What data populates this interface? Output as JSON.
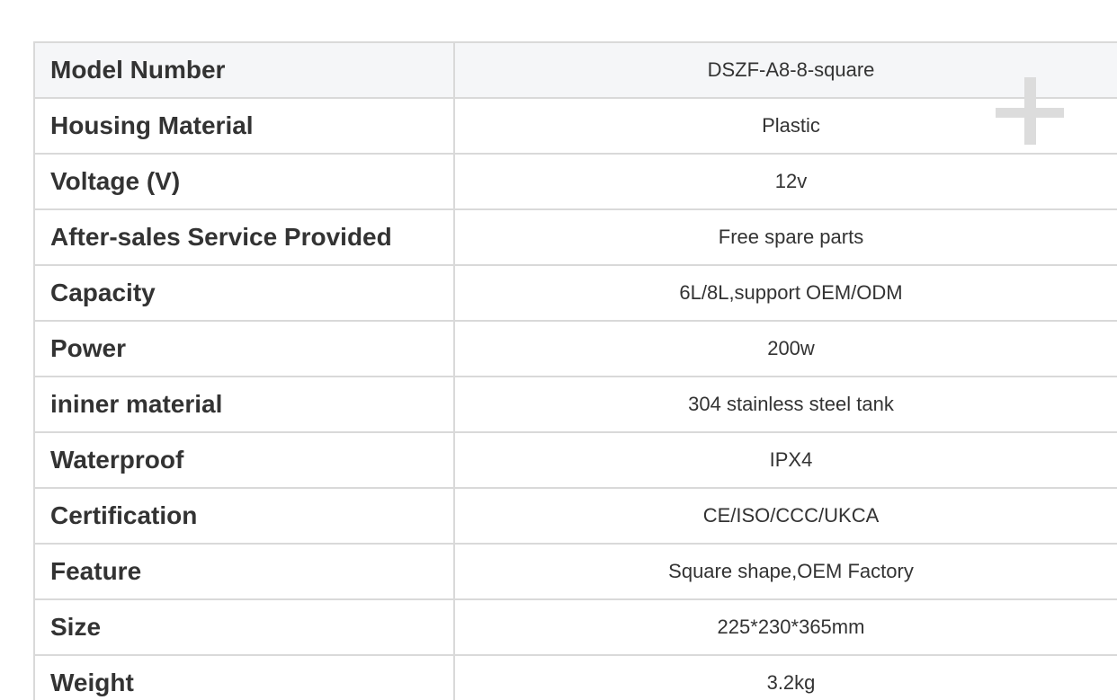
{
  "table": {
    "rows": [
      {
        "label": "Model Number",
        "value": "DSZF-A8-8-square"
      },
      {
        "label": "Housing Material",
        "value": "Plastic"
      },
      {
        "label": "Voltage (V)",
        "value": "12v"
      },
      {
        "label": "After-sales Service Provided",
        "value": "Free spare parts"
      },
      {
        "label": "Capacity",
        "value": "6L/8L,support OEM/ODM"
      },
      {
        "label": "Power",
        "value": "200w"
      },
      {
        "label": "ininer material",
        "value": "304 stainless steel tank"
      },
      {
        "label": "Waterproof",
        "value": "IPX4"
      },
      {
        "label": "Certification",
        "value": "CE/ISO/CCC/UKCA"
      },
      {
        "label": "Feature",
        "value": "Square shape,OEM Factory"
      },
      {
        "label": "Size",
        "value": "225*230*365mm"
      },
      {
        "label": "Weight",
        "value": "3.2kg"
      }
    ],
    "colors": {
      "header_row_bg": "#f5f6f8",
      "border": "#d9d9d9",
      "text": "#333333",
      "plus_icon": "#dcdcdc",
      "page_bg": "#ffffff"
    }
  },
  "icons": {
    "plus": "zoom-plus"
  }
}
